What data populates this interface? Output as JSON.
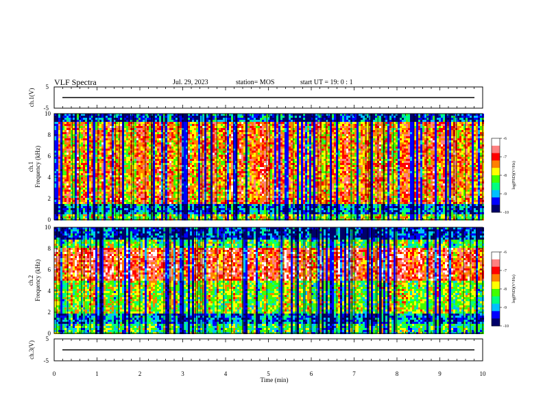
{
  "header": {
    "title": "VLF Spectra",
    "date": "Jul. 29, 2023",
    "station": "station= MOS",
    "start": "start  UT =   19: 0  : 1"
  },
  "chart_data": {
    "type": "heatmap",
    "x": {
      "label": "Time (min)",
      "range": [
        0,
        10
      ],
      "ticks": [
        "0",
        "1",
        "2",
        "3",
        "4",
        "5",
        "6",
        "7",
        "8",
        "9",
        "10"
      ]
    },
    "panels": [
      {
        "id": "ch1v",
        "ylabel": "ch.1(V)",
        "yticks": [
          "5",
          "-5"
        ],
        "ylim": [
          -5,
          5
        ],
        "line_value": 0
      },
      {
        "id": "ch1",
        "ylabel_line1": "ch.1",
        "ylabel_line2": "Frequency (kHz)",
        "ylim": [
          0,
          10
        ],
        "yticks": [
          "0",
          "2",
          "4",
          "6",
          "8",
          "10"
        ],
        "intense_band_khz": [
          1.5,
          9
        ],
        "lower_band_khz": [
          0,
          1.5
        ]
      },
      {
        "id": "ch2",
        "ylabel_line1": "ch.2",
        "ylabel_line2": "Frequency (kHz)",
        "ylim": [
          0,
          10
        ],
        "yticks": [
          "0",
          "2",
          "4",
          "6",
          "8",
          "10"
        ],
        "intense_band_khz": [
          5,
          8
        ],
        "lower_band_khz": [
          0,
          2
        ]
      },
      {
        "id": "ch3v",
        "ylabel": "ch.3(V)",
        "yticks": [
          "5",
          "-5"
        ],
        "ylim": [
          -5,
          5
        ],
        "line_value": 0
      }
    ],
    "colorbar": {
      "label": "log(PSD)(V²/Hz)",
      "range": [
        -10,
        -6
      ],
      "ticks": [
        "-6",
        "-7",
        "-8",
        "-9",
        "-10"
      ],
      "colors": [
        "#00006a",
        "#0000ff",
        "#00c0ff",
        "#00ff80",
        "#40ff00",
        "#ffff00",
        "#ff8000",
        "#ff0000",
        "#ff8080",
        "#ffffff"
      ]
    }
  }
}
